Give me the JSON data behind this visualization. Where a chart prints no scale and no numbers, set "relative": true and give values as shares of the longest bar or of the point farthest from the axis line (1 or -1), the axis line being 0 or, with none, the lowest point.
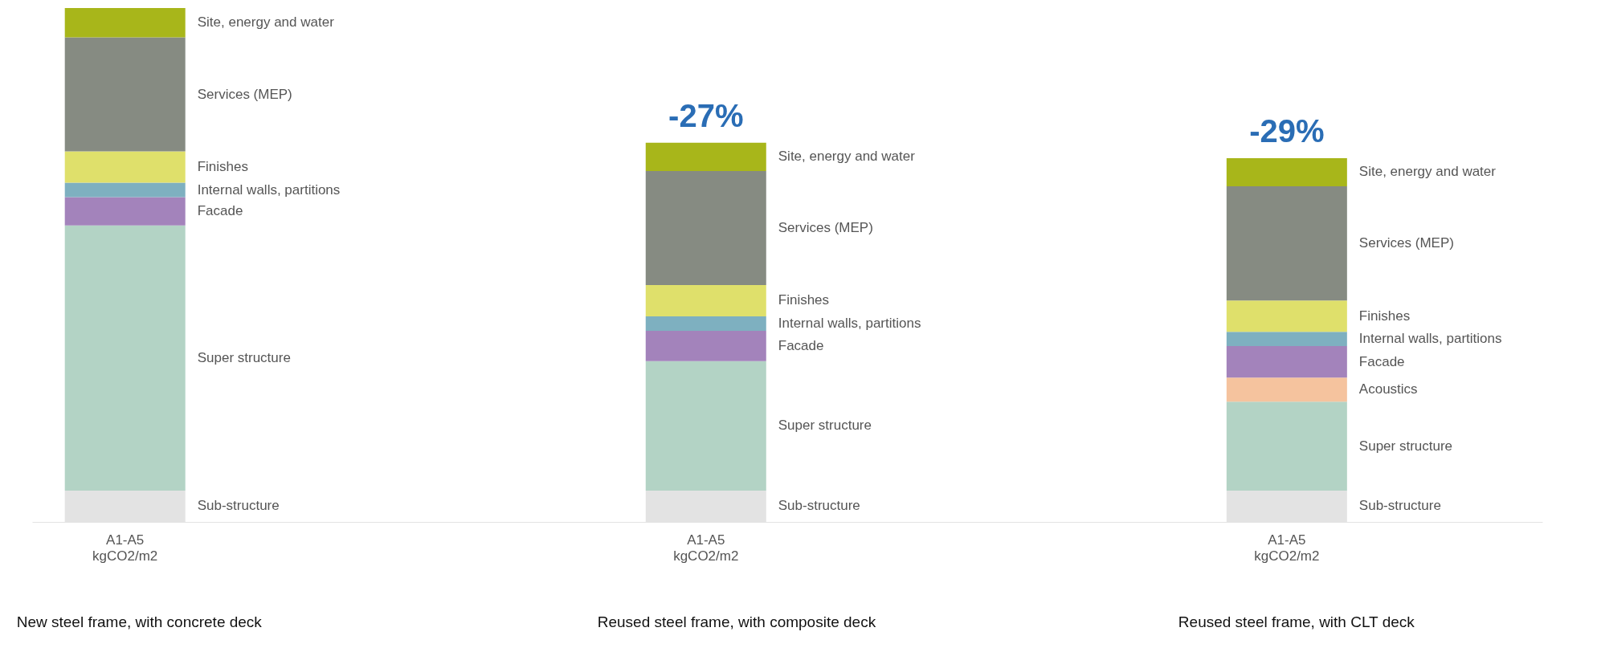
{
  "chart_data": {
    "type": "bar",
    "stacked": true,
    "relative": true,
    "categories": [
      "A1-A5 kgCO2/m2",
      "A1-A5 kgCO2/m2",
      "A1-A5 kgCO2/m2"
    ],
    "series": [
      {
        "name": "Sub-structure",
        "color": "#e3e3e3",
        "values": [
          0.061,
          0.061,
          0.061
        ]
      },
      {
        "name": "Super structure",
        "color": "#b3d3c5",
        "values": [
          0.516,
          0.252,
          0.173
        ]
      },
      {
        "name": "Acoustics",
        "color": "#f5c39e",
        "values": [
          null,
          null,
          0.047
        ]
      },
      {
        "name": "Facade",
        "color": "#a383bb",
        "values": [
          0.055,
          0.059,
          0.061
        ]
      },
      {
        "name": "Internal walls, partitions",
        "color": "#7eb0c0",
        "values": [
          0.028,
          0.028,
          0.028
        ]
      },
      {
        "name": "Finishes",
        "color": "#dfe06b",
        "values": [
          0.061,
          0.061,
          0.061
        ]
      },
      {
        "name": "Services (MEP)",
        "color": "#868b82",
        "values": [
          0.222,
          0.222,
          0.222
        ]
      },
      {
        "name": "Site, energy and water",
        "color": "#a8b61a",
        "values": [
          0.057,
          0.055,
          0.055
        ]
      }
    ],
    "annotations": [
      "-27%",
      "-29%",
      "New steel frame, with concrete deck",
      "Reused steel frame, with composite deck",
      "Reused steel frame, with CLT deck"
    ]
  }
}
